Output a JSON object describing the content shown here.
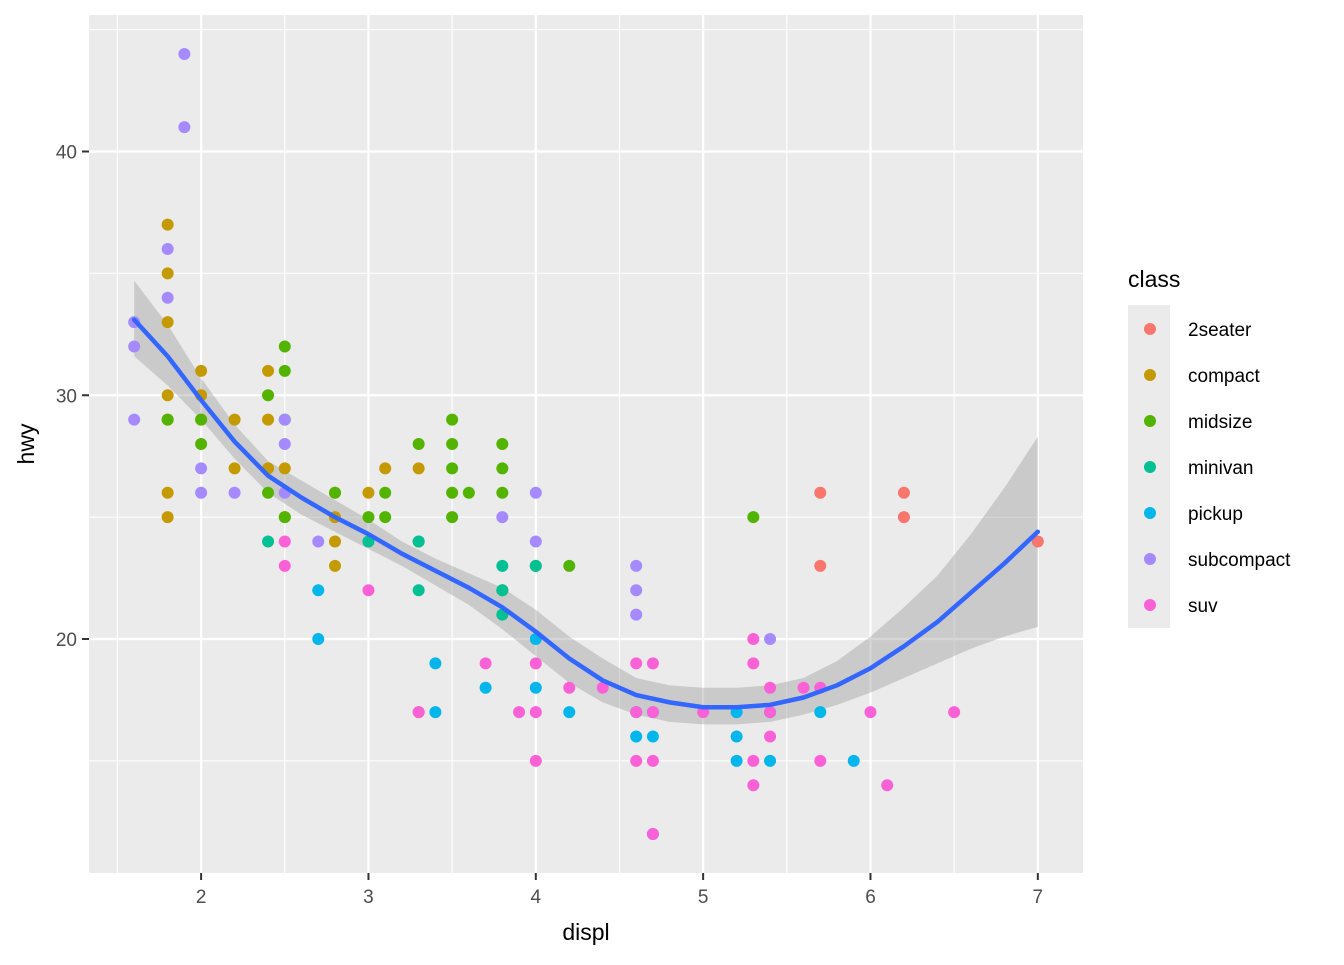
{
  "chart_data": {
    "type": "scatter",
    "xlabel": "displ",
    "ylabel": "hwy",
    "xlim": [
      1.33,
      7.27
    ],
    "ylim": [
      10.4,
      45.6
    ],
    "x_ticks": [
      2,
      3,
      4,
      5,
      6,
      7
    ],
    "y_ticks": [
      20,
      30,
      40
    ],
    "grid": true,
    "legend": {
      "title": "class",
      "position": "right",
      "entries": [
        {
          "name": "2seater",
          "color": "#F8766D"
        },
        {
          "name": "compact",
          "color": "#C49A00"
        },
        {
          "name": "midsize",
          "color": "#53B400"
        },
        {
          "name": "minivan",
          "color": "#00C094"
        },
        {
          "name": "pickup",
          "color": "#00B6EB"
        },
        {
          "name": "subcompact",
          "color": "#A58AFF"
        },
        {
          "name": "suv",
          "color": "#FB61D7"
        }
      ]
    },
    "series": [
      {
        "name": "2seater",
        "points": [
          [
            5.7,
            26
          ],
          [
            5.7,
            23
          ],
          [
            6.2,
            26
          ],
          [
            6.2,
            25
          ],
          [
            7.0,
            24
          ]
        ]
      },
      {
        "name": "compact",
        "points": [
          [
            1.8,
            37
          ],
          [
            1.8,
            35
          ],
          [
            1.8,
            33
          ],
          [
            1.8,
            30
          ],
          [
            1.8,
            29
          ],
          [
            1.8,
            26
          ],
          [
            1.8,
            25
          ],
          [
            2.0,
            31
          ],
          [
            2.0,
            30
          ],
          [
            2.0,
            29
          ],
          [
            2.2,
            29
          ],
          [
            2.2,
            27
          ],
          [
            2.4,
            31
          ],
          [
            2.4,
            29
          ],
          [
            2.4,
            27
          ],
          [
            2.5,
            27
          ],
          [
            2.5,
            25
          ],
          [
            2.8,
            26
          ],
          [
            2.8,
            25
          ],
          [
            2.8,
            24
          ],
          [
            2.8,
            23
          ],
          [
            3.0,
            26
          ],
          [
            3.1,
            27
          ],
          [
            3.3,
            27
          ],
          [
            3.3,
            17
          ]
        ]
      },
      {
        "name": "midsize",
        "points": [
          [
            1.8,
            29
          ],
          [
            2.0,
            29
          ],
          [
            2.0,
            28
          ],
          [
            2.4,
            30
          ],
          [
            2.4,
            26
          ],
          [
            2.5,
            32
          ],
          [
            2.5,
            31
          ],
          [
            2.5,
            29
          ],
          [
            2.5,
            25
          ],
          [
            2.8,
            26
          ],
          [
            3.0,
            25
          ],
          [
            3.1,
            26
          ],
          [
            3.1,
            25
          ],
          [
            3.3,
            28
          ],
          [
            3.3,
            24
          ],
          [
            3.5,
            29
          ],
          [
            3.5,
            28
          ],
          [
            3.5,
            27
          ],
          [
            3.5,
            26
          ],
          [
            3.5,
            25
          ],
          [
            3.6,
            26
          ],
          [
            3.8,
            28
          ],
          [
            3.8,
            27
          ],
          [
            3.8,
            26
          ],
          [
            3.8,
            22
          ],
          [
            4.0,
            23
          ],
          [
            4.2,
            23
          ],
          [
            5.3,
            25
          ]
        ]
      },
      {
        "name": "minivan",
        "points": [
          [
            2.4,
            24
          ],
          [
            3.0,
            24
          ],
          [
            3.3,
            24
          ],
          [
            3.3,
            22
          ],
          [
            3.8,
            23
          ],
          [
            3.8,
            22
          ],
          [
            3.8,
            21
          ],
          [
            4.0,
            23
          ]
        ]
      },
      {
        "name": "pickup",
        "points": [
          [
            2.7,
            22
          ],
          [
            2.7,
            20
          ],
          [
            3.4,
            19
          ],
          [
            3.4,
            17
          ],
          [
            3.7,
            18
          ],
          [
            4.0,
            20
          ],
          [
            4.0,
            18
          ],
          [
            4.2,
            17
          ],
          [
            4.6,
            17
          ],
          [
            4.6,
            16
          ],
          [
            4.7,
            17
          ],
          [
            4.7,
            16
          ],
          [
            4.7,
            12
          ],
          [
            5.2,
            17
          ],
          [
            5.2,
            16
          ],
          [
            5.2,
            15
          ],
          [
            5.4,
            17
          ],
          [
            5.4,
            15
          ],
          [
            5.7,
            17
          ],
          [
            5.9,
            15
          ]
        ]
      },
      {
        "name": "subcompact",
        "points": [
          [
            1.6,
            33
          ],
          [
            1.6,
            32
          ],
          [
            1.6,
            29
          ],
          [
            1.8,
            36
          ],
          [
            1.8,
            34
          ],
          [
            1.9,
            44
          ],
          [
            1.9,
            41
          ],
          [
            2.0,
            27
          ],
          [
            2.0,
            26
          ],
          [
            2.2,
            26
          ],
          [
            2.5,
            29
          ],
          [
            2.5,
            28
          ],
          [
            2.5,
            26
          ],
          [
            2.7,
            24
          ],
          [
            3.8,
            25
          ],
          [
            4.0,
            26
          ],
          [
            4.0,
            24
          ],
          [
            4.6,
            23
          ],
          [
            4.6,
            22
          ],
          [
            4.6,
            21
          ],
          [
            5.4,
            20
          ]
        ]
      },
      {
        "name": "suv",
        "points": [
          [
            2.5,
            24
          ],
          [
            2.5,
            23
          ],
          [
            3.0,
            22
          ],
          [
            3.3,
            17
          ],
          [
            3.7,
            19
          ],
          [
            3.9,
            17
          ],
          [
            4.0,
            19
          ],
          [
            4.0,
            17
          ],
          [
            4.0,
            15
          ],
          [
            4.2,
            18
          ],
          [
            4.4,
            18
          ],
          [
            4.6,
            19
          ],
          [
            4.6,
            17
          ],
          [
            4.6,
            15
          ],
          [
            4.7,
            19
          ],
          [
            4.7,
            17
          ],
          [
            4.7,
            15
          ],
          [
            4.7,
            12
          ],
          [
            5.0,
            17
          ],
          [
            5.3,
            20
          ],
          [
            5.3,
            19
          ],
          [
            5.3,
            15
          ],
          [
            5.3,
            14
          ],
          [
            5.4,
            18
          ],
          [
            5.4,
            17
          ],
          [
            5.4,
            16
          ],
          [
            5.6,
            18
          ],
          [
            5.7,
            18
          ],
          [
            5.7,
            15
          ],
          [
            6.0,
            17
          ],
          [
            6.1,
            14
          ],
          [
            6.5,
            17
          ]
        ]
      }
    ],
    "smooth": {
      "method": "loess",
      "color": "#3366FF",
      "points": [
        [
          1.6,
          33.1
        ],
        [
          1.8,
          31.6
        ],
        [
          2.0,
          29.8
        ],
        [
          2.2,
          28.1
        ],
        [
          2.4,
          26.7
        ],
        [
          2.6,
          25.8
        ],
        [
          2.8,
          25.0
        ],
        [
          3.0,
          24.3
        ],
        [
          3.2,
          23.5
        ],
        [
          3.4,
          22.8
        ],
        [
          3.6,
          22.1
        ],
        [
          3.8,
          21.3
        ],
        [
          4.0,
          20.3
        ],
        [
          4.2,
          19.2
        ],
        [
          4.4,
          18.3
        ],
        [
          4.6,
          17.7
        ],
        [
          4.8,
          17.4
        ],
        [
          5.0,
          17.2
        ],
        [
          5.2,
          17.2
        ],
        [
          5.4,
          17.3
        ],
        [
          5.6,
          17.6
        ],
        [
          5.8,
          18.1
        ],
        [
          6.0,
          18.8
        ],
        [
          6.2,
          19.7
        ],
        [
          6.4,
          20.7
        ],
        [
          6.6,
          21.9
        ],
        [
          6.8,
          23.1
        ],
        [
          7.0,
          24.4
        ]
      ],
      "ci_lower": [
        [
          1.6,
          31.6
        ],
        [
          1.8,
          30.4
        ],
        [
          2.0,
          29.0
        ],
        [
          2.2,
          27.4
        ],
        [
          2.4,
          26.0
        ],
        [
          2.6,
          25.1
        ],
        [
          2.8,
          24.4
        ],
        [
          3.0,
          23.7
        ],
        [
          3.2,
          23.0
        ],
        [
          3.4,
          22.2
        ],
        [
          3.6,
          21.4
        ],
        [
          3.8,
          20.4
        ],
        [
          4.0,
          19.3
        ],
        [
          4.2,
          18.2
        ],
        [
          4.4,
          17.4
        ],
        [
          4.6,
          16.9
        ],
        [
          4.8,
          16.6
        ],
        [
          5.0,
          16.5
        ],
        [
          5.2,
          16.5
        ],
        [
          5.4,
          16.6
        ],
        [
          5.6,
          16.9
        ],
        [
          5.8,
          17.3
        ],
        [
          6.0,
          17.8
        ],
        [
          6.2,
          18.4
        ],
        [
          6.4,
          19.0
        ],
        [
          6.6,
          19.6
        ],
        [
          6.8,
          20.1
        ],
        [
          7.0,
          20.5
        ]
      ],
      "ci_upper": [
        [
          1.6,
          34.7
        ],
        [
          1.8,
          32.9
        ],
        [
          2.0,
          30.7
        ],
        [
          2.2,
          28.8
        ],
        [
          2.4,
          27.3
        ],
        [
          2.6,
          26.5
        ],
        [
          2.8,
          25.7
        ],
        [
          3.0,
          24.9
        ],
        [
          3.2,
          24.0
        ],
        [
          3.4,
          23.3
        ],
        [
          3.6,
          22.7
        ],
        [
          3.8,
          22.1
        ],
        [
          4.0,
          21.2
        ],
        [
          4.2,
          20.1
        ],
        [
          4.4,
          19.2
        ],
        [
          4.6,
          18.4
        ],
        [
          4.8,
          18.1
        ],
        [
          5.0,
          18.0
        ],
        [
          5.2,
          18.0
        ],
        [
          5.4,
          18.1
        ],
        [
          5.6,
          18.4
        ],
        [
          5.8,
          19.1
        ],
        [
          6.0,
          20.1
        ],
        [
          6.2,
          21.3
        ],
        [
          6.4,
          22.6
        ],
        [
          6.6,
          24.3
        ],
        [
          6.8,
          26.2
        ],
        [
          7.0,
          28.3
        ]
      ]
    }
  }
}
